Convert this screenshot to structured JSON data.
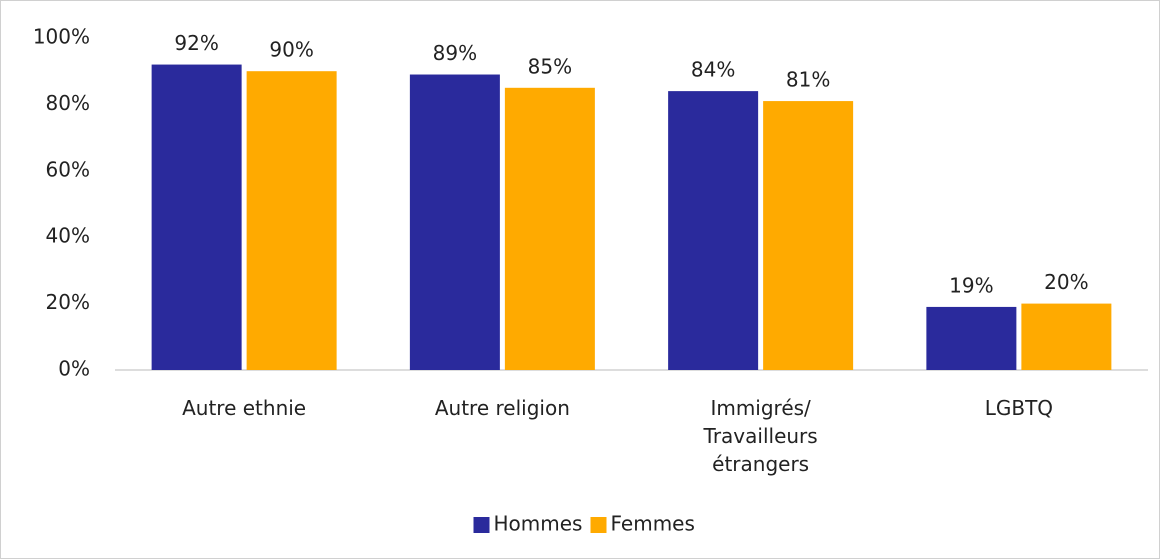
{
  "chart_data": {
    "type": "bar",
    "categories": [
      "Autre ethnie",
      "Autre religion",
      "Immigrés/ Travailleurs étrangers",
      "LGBTQ"
    ],
    "series": [
      {
        "name": "Hommes",
        "color": "#2a2a9c",
        "values": [
          92,
          89,
          84,
          19
        ],
        "value_labels": [
          "92%",
          "89%",
          "84%",
          "19%"
        ]
      },
      {
        "name": "Femmes",
        "color": "#ffaa00",
        "values": [
          90,
          85,
          81,
          20
        ],
        "value_labels": [
          "90%",
          "85%",
          "81%",
          "20%"
        ]
      }
    ],
    "ylim": [
      0,
      100
    ],
    "yticks": [
      {
        "value": 0,
        "label": "0%"
      },
      {
        "value": 20,
        "label": "20%"
      },
      {
        "value": 40,
        "label": "40%"
      },
      {
        "value": 60,
        "label": "60%"
      },
      {
        "value": 80,
        "label": "80%"
      },
      {
        "value": 100,
        "label": "100%"
      }
    ],
    "grid": false,
    "legend": "bottom"
  }
}
